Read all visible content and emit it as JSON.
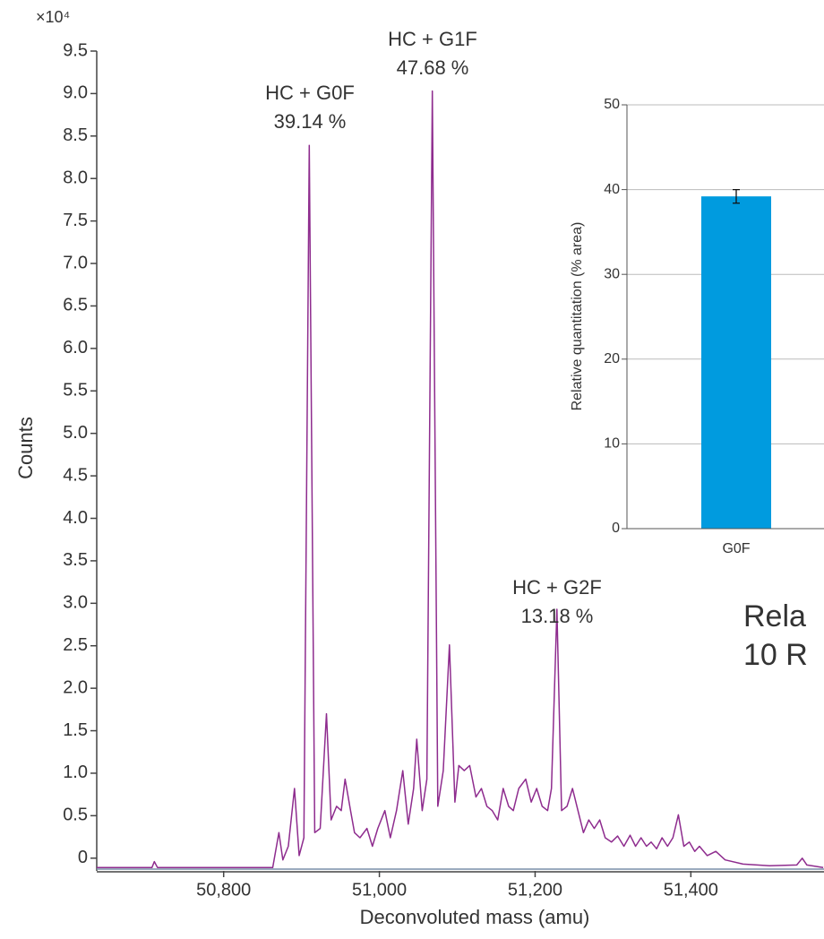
{
  "chart_data": [
    {
      "type": "line",
      "x_label": "Deconvoluted mass (amu)",
      "y_label": "Counts",
      "y_multiplier": "×10⁴",
      "color": "#8e2c8e",
      "x": [
        50637,
        50708,
        50711,
        50715,
        50863,
        50871,
        50876,
        50883,
        50891,
        50897,
        50903,
        50910,
        50917,
        50924,
        50932,
        50938,
        50945,
        50951,
        50956,
        50963,
        50968,
        50975,
        50984,
        50991,
        50998,
        51007,
        51014,
        51022,
        51030,
        51037,
        51044,
        51048,
        51055,
        51061,
        51068,
        51075,
        51082,
        51090,
        51097,
        51102,
        51109,
        51116,
        51124,
        51131,
        51138,
        51145,
        51152,
        51159,
        51166,
        51172,
        51179,
        51188,
        51195,
        51202,
        51209,
        51216,
        51221,
        51228,
        51234,
        51241,
        51248,
        51255,
        51262,
        51269,
        51276,
        51283,
        51290,
        51298,
        51306,
        51314,
        51322,
        51329,
        51336,
        51343,
        51349,
        51356,
        51363,
        51370,
        51377,
        51384,
        51391,
        51398,
        51405,
        51411,
        51421,
        51432,
        51444,
        51467,
        51501,
        51536,
        51543,
        51549,
        51570
      ],
      "values": [
        -0.11,
        -0.11,
        -0.04,
        -0.11,
        -0.11,
        0.3,
        -0.02,
        0.14,
        0.82,
        0.03,
        0.24,
        8.39,
        0.3,
        0.35,
        1.7,
        0.45,
        0.61,
        0.56,
        0.93,
        0.56,
        0.3,
        0.24,
        0.35,
        0.14,
        0.35,
        0.56,
        0.24,
        0.56,
        1.03,
        0.4,
        0.82,
        1.4,
        0.56,
        0.93,
        9.03,
        0.61,
        1.03,
        2.51,
        0.66,
        1.09,
        1.03,
        1.09,
        0.72,
        0.82,
        0.61,
        0.56,
        0.45,
        0.82,
        0.61,
        0.56,
        0.82,
        0.93,
        0.66,
        0.82,
        0.61,
        0.56,
        0.82,
        2.93,
        0.56,
        0.61,
        0.82,
        0.56,
        0.3,
        0.45,
        0.35,
        0.45,
        0.24,
        0.19,
        0.26,
        0.14,
        0.27,
        0.14,
        0.24,
        0.14,
        0.19,
        0.11,
        0.24,
        0.14,
        0.24,
        0.51,
        0.14,
        0.19,
        0.08,
        0.14,
        0.03,
        0.08,
        -0.02,
        -0.07,
        -0.09,
        -0.08,
        0,
        -0.08,
        -0.11
      ],
      "xlim": [
        50637,
        51571
      ],
      "xticks": [
        {
          "value": 50800,
          "label": "50,800"
        },
        {
          "value": 51000,
          "label": "51,000"
        },
        {
          "value": 51200,
          "label": "51,200"
        },
        {
          "value": 51400,
          "label": "51,400"
        }
      ],
      "ylim": [
        -0.15,
        9.5
      ],
      "yticks": [
        0,
        0.5,
        {
          "value": 1,
          "label": "1.0"
        },
        1.5,
        {
          "value": 2,
          "label": "2.0"
        },
        2.5,
        {
          "value": 3,
          "label": "3.0"
        },
        3.5,
        {
          "value": 4,
          "label": "4.0"
        },
        4.5,
        {
          "value": 5,
          "label": "5.0"
        },
        5.5,
        {
          "value": 6,
          "label": "6.0"
        },
        6.5,
        {
          "value": 7,
          "label": "7.0"
        },
        7.5,
        {
          "value": 8,
          "label": "8.0"
        },
        8.5,
        {
          "value": 9,
          "label": "9.0"
        },
        9.5
      ],
      "annotations": [
        [
          "HC + G0F",
          "39.14 %"
        ],
        [
          "HC + G1F",
          "47.68 %"
        ],
        [
          "HC + G2F",
          "13.18 %"
        ]
      ]
    },
    {
      "type": "bar",
      "y_label": "Relative quantitation (% area)",
      "categories": [
        "G0F"
      ],
      "values": [
        39.2
      ],
      "errors": [
        0.8
      ],
      "color": "#009bdf",
      "ylim": [
        0,
        50
      ],
      "yticks": [
        0,
        10,
        20,
        30,
        40,
        50
      ],
      "grid": true
    }
  ],
  "caption": [
    "Rela",
    "10 R"
  ]
}
